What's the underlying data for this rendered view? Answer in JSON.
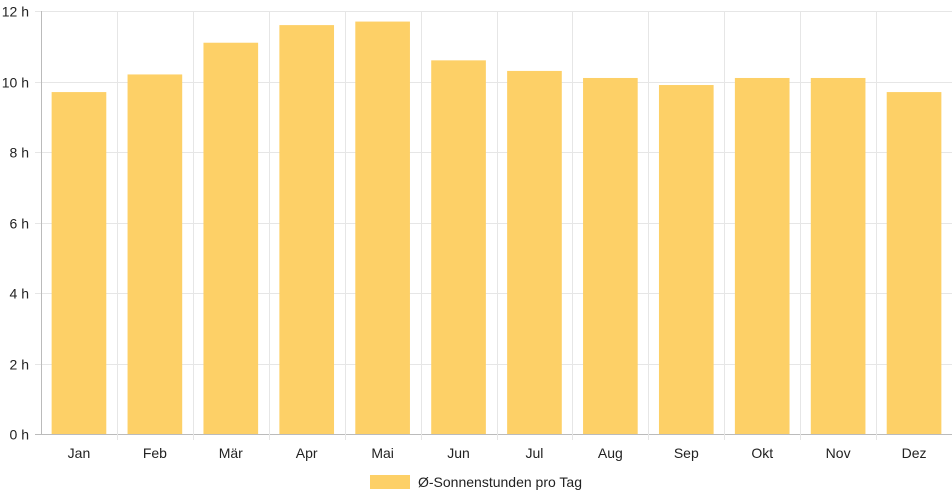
{
  "chart_data": {
    "type": "bar",
    "title": "",
    "xlabel": "",
    "ylabel": "",
    "categories": [
      "Jan",
      "Feb",
      "Mär",
      "Apr",
      "Mai",
      "Jun",
      "Jul",
      "Aug",
      "Sep",
      "Okt",
      "Nov",
      "Dez"
    ],
    "series": [
      {
        "name": "Ø-Sonnenstunden pro Tag",
        "values": [
          9.7,
          10.2,
          11.1,
          11.6,
          11.7,
          10.6,
          10.3,
          10.1,
          9.9,
          10.1,
          10.1,
          9.7
        ]
      }
    ],
    "ylim": [
      0,
      12
    ],
    "yticks": [
      "0 h",
      "2 h",
      "4 h",
      "6 h",
      "8 h",
      "10 h",
      "12 h"
    ],
    "grid": true,
    "legend_position": "bottom",
    "colors": {
      "bar": "#fdd067",
      "grid": "#e6e6e6",
      "axis": "#bbbbbb",
      "text": "#222222"
    }
  }
}
